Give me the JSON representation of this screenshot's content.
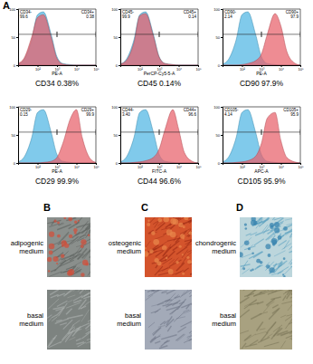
{
  "panel_label": "A",
  "chart_data": [
    {
      "type": "area",
      "title": "CD34 0.38%",
      "x_label": "PE-A",
      "log": "x",
      "x": [
        10,
        20,
        50,
        100,
        200,
        500,
        1000,
        2000,
        5000,
        10000,
        20000,
        50000,
        100000
      ],
      "series": [
        {
          "color": "#4fb6e3",
          "values": [
            2,
            10,
            45,
            90,
            95,
            55,
            15,
            3,
            1,
            0,
            0,
            0,
            0
          ]
        },
        {
          "color": "#e8606a",
          "values": [
            3,
            12,
            50,
            85,
            90,
            50,
            12,
            2,
            0,
            0,
            0,
            0,
            0
          ]
        }
      ],
      "xlim": [
        10,
        100000
      ],
      "xticks": [
        {
          "value": 100,
          "label": "10²"
        },
        {
          "value": 1000,
          "label": "10³"
        },
        {
          "value": 10000,
          "label": "10⁴"
        },
        {
          "value": 100000,
          "label": "10⁵"
        }
      ],
      "ylim": [
        0,
        100
      ],
      "yticks": [
        0,
        50,
        100
      ],
      "gates": [
        {
          "name": "CD34-",
          "value": 99.6,
          "x_range": [
            10,
            1000
          ]
        },
        {
          "name": "CD34+",
          "value": 0.38,
          "x_range": [
            1000,
            100000
          ]
        }
      ]
    },
    {
      "type": "area",
      "title": "CD45 0.14%",
      "x_label": "PerCP-Cy5-5-A",
      "log": "x",
      "x": [
        10,
        20,
        50,
        100,
        200,
        500,
        1000,
        2000,
        5000,
        10000,
        20000,
        50000,
        100000
      ],
      "series": [
        {
          "color": "#4fb6e3",
          "values": [
            2,
            10,
            45,
            90,
            95,
            55,
            15,
            3,
            1,
            0,
            0,
            0,
            0
          ]
        },
        {
          "color": "#e8606a",
          "values": [
            2,
            8,
            40,
            88,
            92,
            52,
            14,
            3,
            1,
            0,
            0,
            0,
            0
          ]
        }
      ],
      "xlim": [
        10,
        100000
      ],
      "xticks": [
        {
          "value": 100,
          "label": "10²"
        },
        {
          "value": 1000,
          "label": "10³"
        },
        {
          "value": 10000,
          "label": "10⁴"
        },
        {
          "value": 100000,
          "label": "10⁵"
        }
      ],
      "ylim": [
        0,
        100
      ],
      "yticks": [
        0,
        50,
        100
      ],
      "gates": [
        {
          "name": "CD45-",
          "value": 99.9,
          "x_range": [
            10,
            1000
          ]
        },
        {
          "name": "CD45+",
          "value": 0.14,
          "x_range": [
            1000,
            100000
          ]
        }
      ]
    },
    {
      "type": "area",
      "title": "CD90 97.9%",
      "x_label": "PE-A",
      "log": "x",
      "x": [
        10,
        20,
        50,
        100,
        200,
        500,
        1000,
        2000,
        5000,
        10000,
        20000,
        50000,
        100000
      ],
      "series": [
        {
          "color": "#4fb6e3",
          "values": [
            2,
            10,
            45,
            90,
            95,
            55,
            15,
            3,
            1,
            0,
            0,
            0,
            0
          ]
        },
        {
          "color": "#e8606a",
          "values": [
            0,
            0,
            0,
            1,
            3,
            8,
            20,
            55,
            92,
            70,
            25,
            4,
            0
          ]
        }
      ],
      "xlim": [
        10,
        100000
      ],
      "xticks": [
        {
          "value": 100,
          "label": "10²"
        },
        {
          "value": 1000,
          "label": "10³"
        },
        {
          "value": 10000,
          "label": "10⁴"
        },
        {
          "value": 100000,
          "label": "10⁵"
        }
      ],
      "ylim": [
        0,
        100
      ],
      "yticks": [
        0,
        50,
        100
      ],
      "gates": [
        {
          "name": "CD90-",
          "value": 2.14,
          "x_range": [
            10,
            1000
          ]
        },
        {
          "name": "CD90+",
          "value": 97.9,
          "x_range": [
            1000,
            100000
          ]
        }
      ]
    },
    {
      "type": "area",
      "title": "CD29 99.9%",
      "x_label": "PE-A",
      "log": "x",
      "x": [
        10,
        20,
        50,
        100,
        200,
        500,
        1000,
        2000,
        5000,
        10000,
        20000,
        50000,
        100000
      ],
      "series": [
        {
          "color": "#4fb6e3",
          "values": [
            2,
            10,
            45,
            90,
            95,
            55,
            15,
            3,
            1,
            0,
            0,
            0,
            0
          ]
        },
        {
          "color": "#e8606a",
          "values": [
            0,
            0,
            0,
            0,
            1,
            3,
            10,
            35,
            80,
            95,
            45,
            8,
            1
          ]
        }
      ],
      "xlim": [
        10,
        100000
      ],
      "xticks": [
        {
          "value": 100,
          "label": "10²"
        },
        {
          "value": 1000,
          "label": "10³"
        },
        {
          "value": 10000,
          "label": "10⁴"
        },
        {
          "value": 100000,
          "label": "10⁵"
        }
      ],
      "ylim": [
        0,
        100
      ],
      "yticks": [
        0,
        50,
        100
      ],
      "gates": [
        {
          "name": "CD29-",
          "value": 0.15,
          "x_range": [
            10,
            1000
          ]
        },
        {
          "name": "CD29+",
          "value": 99.9,
          "x_range": [
            1000,
            100000
          ]
        }
      ]
    },
    {
      "type": "area",
      "title": "CD44 96.6%",
      "x_label": "FITC-A",
      "log": "x",
      "x": [
        10,
        20,
        50,
        100,
        200,
        500,
        1000,
        2000,
        5000,
        10000,
        20000,
        50000,
        100000
      ],
      "series": [
        {
          "color": "#4fb6e3",
          "values": [
            2,
            10,
            45,
            90,
            95,
            55,
            15,
            3,
            1,
            0,
            0,
            0,
            0
          ]
        },
        {
          "color": "#e8606a",
          "values": [
            0,
            0,
            1,
            2,
            4,
            10,
            25,
            60,
            95,
            60,
            18,
            3,
            0
          ]
        }
      ],
      "xlim": [
        10,
        100000
      ],
      "xticks": [
        {
          "value": 100,
          "label": "10²"
        },
        {
          "value": 1000,
          "label": "10³"
        },
        {
          "value": 10000,
          "label": "10⁴"
        },
        {
          "value": 100000,
          "label": "10⁵"
        }
      ],
      "ylim": [
        0,
        100
      ],
      "yticks": [
        0,
        50,
        100
      ],
      "gates": [
        {
          "name": "CD44-",
          "value": 3.4,
          "value_label": "3.40",
          "x_range": [
            10,
            1000
          ]
        },
        {
          "name": "CD44+",
          "value": 96.6,
          "x_range": [
            1000,
            100000
          ]
        }
      ]
    },
    {
      "type": "area",
      "title": "CD105 95.9%",
      "x_label": "APC-A",
      "log": "x",
      "x": [
        10,
        20,
        50,
        100,
        200,
        500,
        1000,
        2000,
        5000,
        10000,
        20000,
        50000,
        100000
      ],
      "series": [
        {
          "color": "#4fb6e3",
          "values": [
            2,
            10,
            45,
            90,
            95,
            55,
            15,
            3,
            1,
            0,
            0,
            0,
            0
          ]
        },
        {
          "color": "#e8606a",
          "values": [
            0,
            0,
            1,
            2,
            4,
            12,
            35,
            80,
            90,
            40,
            10,
            2,
            0
          ]
        }
      ],
      "xlim": [
        10,
        100000
      ],
      "xticks": [
        {
          "value": 100,
          "label": "10²"
        },
        {
          "value": 1000,
          "label": "10³"
        },
        {
          "value": 10000,
          "label": "10⁴"
        },
        {
          "value": 100000,
          "label": "10⁵"
        }
      ],
      "ylim": [
        0,
        100
      ],
      "yticks": [
        0,
        50,
        100
      ],
      "gates": [
        {
          "name": "CD105-",
          "value": 4.14,
          "x_range": [
            10,
            1000
          ]
        },
        {
          "name": "CD105+",
          "value": 95.9,
          "x_range": [
            1000,
            100000
          ]
        }
      ]
    }
  ],
  "images": [
    {
      "panel": "B",
      "stained": "adipogenic medium",
      "control": "basal medium"
    },
    {
      "panel": "C",
      "stained": "osteogenic medium",
      "control": "basal medium"
    },
    {
      "panel": "D",
      "stained": "chondrogenic medium",
      "control": "basal medium"
    }
  ]
}
